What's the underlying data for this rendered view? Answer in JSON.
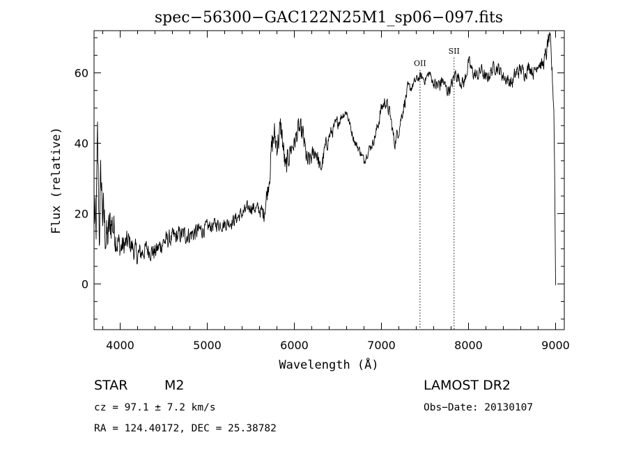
{
  "chart_data": {
    "type": "line",
    "title": "spec−56300−GAC122N25M1_sp06−097.fits",
    "xlabel": "Wavelength (Å)",
    "ylabel": "Flux (relative)",
    "xlim": [
      3700,
      9100
    ],
    "ylim": [
      -13,
      72
    ],
    "grid": false,
    "x_ticks": [
      4000,
      5000,
      6000,
      7000,
      8000,
      9000
    ],
    "x_tick_labels": [
      "4000",
      "5000",
      "6000",
      "7000",
      "8000",
      "9000"
    ],
    "y_ticks": [
      0,
      20,
      40,
      60
    ],
    "y_tick_labels": [
      "0",
      "20",
      "40",
      "60"
    ],
    "series": [
      {
        "style": "noisy-line",
        "x": [
          3700,
          3720,
          3740,
          3760,
          3780,
          3800,
          3850,
          3900,
          3950,
          4000,
          4100,
          4200,
          4300,
          4400,
          4500,
          4600,
          4700,
          4800,
          4900,
          5000,
          5100,
          5200,
          5300,
          5400,
          5500,
          5600,
          5650,
          5700,
          5740,
          5760,
          5800,
          5850,
          5900,
          5950,
          6000,
          6050,
          6100,
          6150,
          6200,
          6250,
          6300,
          6350,
          6400,
          6450,
          6500,
          6550,
          6600,
          6650,
          6700,
          6750,
          6800,
          6850,
          6900,
          6950,
          7000,
          7050,
          7100,
          7150,
          7200,
          7250,
          7300,
          7350,
          7400,
          7450,
          7500,
          7550,
          7600,
          7650,
          7700,
          7750,
          7800,
          7850,
          7900,
          7950,
          8000,
          8050,
          8100,
          8150,
          8200,
          8250,
          8300,
          8350,
          8400,
          8450,
          8500,
          8550,
          8600,
          8650,
          8700,
          8750,
          8800,
          8850,
          8900,
          8920,
          8940,
          8960,
          8980,
          8990,
          9000
        ],
        "y": [
          22,
          10,
          38,
          15,
          30,
          20,
          12,
          18,
          14,
          10,
          12,
          8,
          10,
          9,
          12,
          13,
          14,
          14,
          15,
          16,
          17,
          17,
          18,
          20,
          22,
          21,
          20,
          28,
          38,
          42,
          40,
          44,
          32,
          38,
          40,
          44,
          42,
          34,
          36,
          38,
          32,
          38,
          42,
          44,
          46,
          48,
          49,
          44,
          40,
          38,
          35,
          38,
          40,
          44,
          50,
          52,
          48,
          40,
          44,
          50,
          55,
          56,
          58,
          59,
          58,
          60,
          57,
          56,
          58,
          55,
          56,
          60,
          58,
          57,
          63,
          60,
          59,
          61,
          58,
          60,
          62,
          61,
          59,
          58,
          57,
          60,
          61,
          60,
          62,
          60,
          63,
          62,
          66,
          70,
          68,
          60,
          50,
          30,
          0
        ],
        "noise": [
          18,
          16,
          16,
          14,
          14,
          13,
          11,
          10,
          8,
          6,
          5,
          5,
          4,
          4,
          4,
          4,
          4,
          4,
          4,
          3,
          3,
          3,
          3,
          3,
          3,
          3,
          4,
          5,
          7,
          8,
          7,
          7,
          6,
          5,
          4,
          5,
          5,
          5,
          4,
          4,
          4,
          4,
          3,
          3,
          3,
          2,
          2,
          2,
          2,
          2,
          2,
          2,
          2,
          3,
          3,
          3,
          3,
          3,
          3,
          3,
          3,
          2,
          2,
          2,
          2,
          2,
          2,
          5,
          3,
          3,
          3,
          3,
          3,
          3,
          3,
          3,
          3,
          3,
          3,
          3,
          3,
          3,
          3,
          3,
          3,
          4,
          3,
          3,
          3,
          3,
          3,
          3,
          4,
          4,
          4,
          4,
          4,
          4,
          2
        ]
      }
    ],
    "annotations": [
      {
        "label": "OII",
        "x": 7443,
        "label_y": 62
      },
      {
        "label": "SII",
        "x": 7834,
        "label_y": 65.5
      }
    ]
  },
  "info": {
    "object_class": "STAR",
    "subclass": "M2",
    "survey": "LAMOST DR2",
    "redshift_text": "cz = 97.1 ± 7.2 km/s",
    "obs_date_text": "Obs−Date: 20130107",
    "coords_text": "RA = 124.40172, DEC =  25.38782"
  },
  "colors": {
    "spectrum": "#000000",
    "axes": "#000000",
    "background": "#ffffff"
  }
}
